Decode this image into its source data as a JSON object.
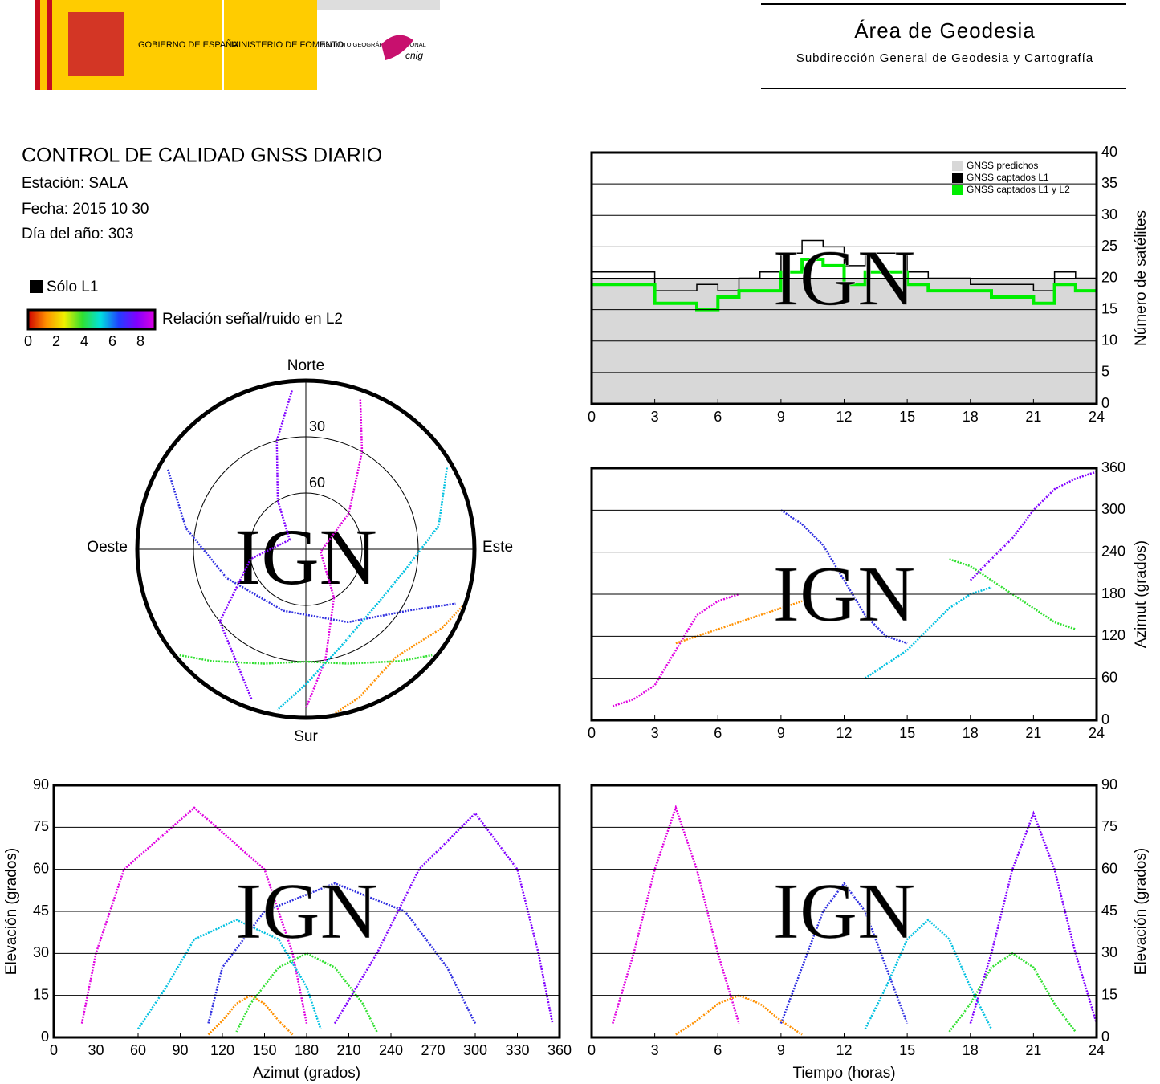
{
  "header": {
    "gov": "GOBIERNO DE ESPAÑA",
    "ministry": "MINISTERIO DE FOMENTO",
    "institute": "INSTITUTO GEOGRÁFICO NACIONAL",
    "cnig": "cnig",
    "area": "Área de Geodesia",
    "subarea": "Subdirección General de Geodesia y Cartografía"
  },
  "info": {
    "title": "CONTROL DE CALIDAD GNSS DIARIO",
    "station": "Estación: SALA",
    "date": "Fecha: 2015 10 30",
    "doy": "Día del año: 303"
  },
  "watermark": "IGN",
  "only_l1": {
    "label": "Sólo L1",
    "color": "#000000"
  },
  "colorbar": {
    "label": "Relación señal/ruido en L2",
    "lim": [
      0,
      8
    ],
    "ticks": [
      0,
      2,
      4,
      6,
      8
    ],
    "colors": [
      "#d00000",
      "#ff9000",
      "#f0f000",
      "#30e030",
      "#00e0e0",
      "#2040ff",
      "#8000ff",
      "#e000e0"
    ]
  },
  "chart_data": [
    {
      "type": "line",
      "xlim": [
        0,
        24
      ],
      "xticks": [
        0,
        3,
        6,
        9,
        12,
        15,
        18,
        21,
        24
      ],
      "ylim": [
        0,
        40
      ],
      "yticks": [
        0,
        5,
        10,
        15,
        20,
        25,
        30,
        35,
        40
      ],
      "y_axis": "right",
      "grid": true,
      "legend": "upper right",
      "ylabel": "Número de satélites",
      "x": [
        0,
        1,
        2,
        3,
        4,
        5,
        6,
        7,
        8,
        9,
        10,
        11,
        12,
        13,
        14,
        15,
        16,
        17,
        18,
        19,
        20,
        21,
        22,
        23,
        24
      ],
      "series": [
        {
          "name": "GNSS predichos",
          "color": "#d8d8d8",
          "area": true,
          "values": [
            20,
            20,
            20,
            20,
            20,
            20,
            20,
            20,
            20,
            20,
            20,
            20,
            20,
            20,
            20,
            20,
            20,
            20,
            20,
            20,
            20,
            20,
            20,
            20,
            20
          ]
        },
        {
          "name": "GNSS captados L1",
          "color": "#000000",
          "values": [
            21,
            21,
            21,
            18,
            18,
            19,
            18,
            20,
            21,
            24,
            26,
            25,
            22,
            24,
            24,
            21,
            20,
            20,
            19,
            19,
            19,
            18,
            21,
            20,
            21
          ]
        },
        {
          "name": "GNSS captados L1 y L2",
          "color": "#00ee00",
          "values": [
            19,
            19,
            19,
            16,
            16,
            15,
            17,
            18,
            18,
            21,
            23,
            22,
            19,
            21,
            21,
            19,
            18,
            18,
            18,
            17,
            17,
            16,
            19,
            18,
            18
          ]
        }
      ]
    },
    {
      "type": "polar",
      "ylim": [
        0,
        90
      ],
      "rticks": [
        30,
        60
      ],
      "directions": {
        "north": "Norte",
        "south": "Sur",
        "east": "Este",
        "west": "Oeste"
      },
      "series": [
        {
          "color": "#e000e0",
          "x": [
            20,
            30,
            50,
            100,
            150,
            170,
            180
          ],
          "values": [
            5,
            30,
            60,
            82,
            60,
            30,
            5
          ]
        },
        {
          "color": "#3030e0",
          "x": [
            300,
            280,
            250,
            200,
            150,
            120,
            110
          ],
          "values": [
            5,
            25,
            45,
            55,
            45,
            25,
            5
          ]
        },
        {
          "color": "#00c0e0",
          "x": [
            60,
            80,
            100,
            130,
            160,
            180,
            190
          ],
          "values": [
            3,
            18,
            35,
            42,
            35,
            18,
            3
          ]
        },
        {
          "color": "#30e030",
          "x": [
            230,
            220,
            200,
            180,
            160,
            140,
            130
          ],
          "values": [
            2,
            12,
            25,
            30,
            25,
            12,
            2
          ]
        },
        {
          "color": "#ff9000",
          "x": [
            110,
            120,
            130,
            140,
            150,
            160,
            170
          ],
          "values": [
            1,
            6,
            12,
            15,
            12,
            6,
            1
          ]
        },
        {
          "color": "#8000ff",
          "x": [
            200,
            230,
            260,
            300,
            330,
            345,
            355
          ],
          "values": [
            5,
            30,
            60,
            80,
            60,
            30,
            5
          ]
        }
      ]
    },
    {
      "type": "line",
      "xlim": [
        0,
        24
      ],
      "xticks": [
        0,
        3,
        6,
        9,
        12,
        15,
        18,
        21,
        24
      ],
      "ylim": [
        0,
        360
      ],
      "yticks": [
        0,
        60,
        120,
        180,
        240,
        300,
        360
      ],
      "y_axis": "right",
      "grid": true,
      "ylabel": "Azimut (grados)",
      "series": [
        {
          "color": "#e000e0",
          "x": [
            1,
            2,
            3,
            4,
            5,
            6,
            7
          ],
          "values": [
            20,
            30,
            50,
            100,
            150,
            170,
            180
          ]
        },
        {
          "color": "#3030e0",
          "x": [
            9,
            10,
            11,
            12,
            13,
            14,
            15
          ],
          "values": [
            300,
            280,
            250,
            200,
            150,
            120,
            110
          ]
        },
        {
          "color": "#00c0e0",
          "x": [
            13,
            14,
            15,
            16,
            17,
            18,
            19
          ],
          "values": [
            60,
            80,
            100,
            130,
            160,
            180,
            190
          ]
        },
        {
          "color": "#30e030",
          "x": [
            17,
            18,
            19,
            20,
            21,
            22,
            23
          ],
          "values": [
            230,
            220,
            200,
            180,
            160,
            140,
            130
          ]
        },
        {
          "color": "#ff9000",
          "x": [
            4,
            5,
            6,
            7,
            8,
            9,
            10
          ],
          "values": [
            110,
            120,
            130,
            140,
            150,
            160,
            170
          ]
        },
        {
          "color": "#8000ff",
          "x": [
            18,
            19,
            20,
            21,
            22,
            23,
            24
          ],
          "values": [
            200,
            230,
            260,
            300,
            330,
            345,
            355
          ]
        }
      ]
    },
    {
      "type": "line",
      "xlim": [
        0,
        360
      ],
      "xticks": [
        0,
        30,
        60,
        90,
        120,
        150,
        180,
        210,
        240,
        270,
        300,
        330,
        360
      ],
      "ylim": [
        0,
        90
      ],
      "yticks": [
        0,
        15,
        30,
        45,
        60,
        75,
        90
      ],
      "y_axis": "left",
      "grid": true,
      "ylabel": "Elevación (grados)",
      "xlabel": "Azimut (grados)",
      "series": [
        {
          "color": "#e000e0",
          "x": [
            20,
            30,
            50,
            100,
            150,
            170,
            180
          ],
          "values": [
            5,
            30,
            60,
            82,
            60,
            30,
            5
          ]
        },
        {
          "color": "#3030e0",
          "x": [
            300,
            280,
            250,
            200,
            150,
            120,
            110
          ],
          "values": [
            5,
            25,
            45,
            55,
            45,
            25,
            5
          ]
        },
        {
          "color": "#00c0e0",
          "x": [
            60,
            80,
            100,
            130,
            160,
            180,
            190
          ],
          "values": [
            3,
            18,
            35,
            42,
            35,
            18,
            3
          ]
        },
        {
          "color": "#30e030",
          "x": [
            230,
            220,
            200,
            180,
            160,
            140,
            130
          ],
          "values": [
            2,
            12,
            25,
            30,
            25,
            12,
            2
          ]
        },
        {
          "color": "#ff9000",
          "x": [
            110,
            120,
            130,
            140,
            150,
            160,
            170
          ],
          "values": [
            1,
            6,
            12,
            15,
            12,
            6,
            1
          ]
        },
        {
          "color": "#8000ff",
          "x": [
            200,
            230,
            260,
            300,
            330,
            345,
            355
          ],
          "values": [
            5,
            30,
            60,
            80,
            60,
            30,
            5
          ]
        }
      ]
    },
    {
      "type": "line",
      "xlim": [
        0,
        24
      ],
      "xticks": [
        0,
        3,
        6,
        9,
        12,
        15,
        18,
        21,
        24
      ],
      "ylim": [
        0,
        90
      ],
      "yticks": [
        0,
        15,
        30,
        45,
        60,
        75,
        90
      ],
      "y_axis": "right",
      "grid": true,
      "ylabel": "Elevación (grados)",
      "xlabel": "Tiempo (horas)",
      "series": [
        {
          "color": "#e000e0",
          "x": [
            1,
            2,
            3,
            4,
            5,
            6,
            7
          ],
          "values": [
            5,
            30,
            60,
            82,
            60,
            30,
            5
          ]
        },
        {
          "color": "#3030e0",
          "x": [
            9,
            10,
            11,
            12,
            13,
            14,
            15
          ],
          "values": [
            5,
            25,
            45,
            55,
            45,
            25,
            5
          ]
        },
        {
          "color": "#00c0e0",
          "x": [
            13,
            14,
            15,
            16,
            17,
            18,
            19
          ],
          "values": [
            3,
            18,
            35,
            42,
            35,
            18,
            3
          ]
        },
        {
          "color": "#30e030",
          "x": [
            17,
            18,
            19,
            20,
            21,
            22,
            23
          ],
          "values": [
            2,
            12,
            25,
            30,
            25,
            12,
            2
          ]
        },
        {
          "color": "#ff9000",
          "x": [
            4,
            5,
            6,
            7,
            8,
            9,
            10
          ],
          "values": [
            1,
            6,
            12,
            15,
            12,
            6,
            1
          ]
        },
        {
          "color": "#8000ff",
          "x": [
            18,
            19,
            20,
            21,
            22,
            23,
            24
          ],
          "values": [
            5,
            30,
            60,
            80,
            60,
            30,
            5
          ]
        }
      ]
    }
  ]
}
